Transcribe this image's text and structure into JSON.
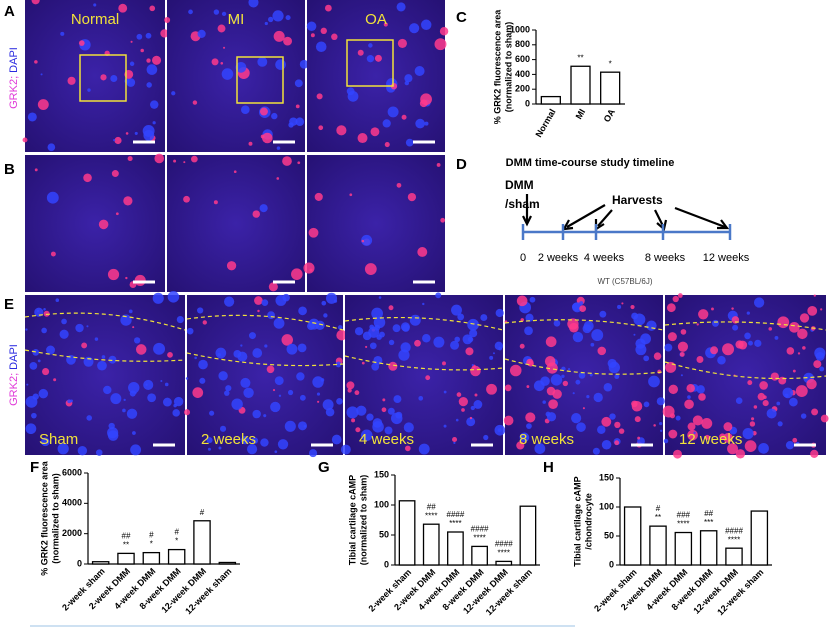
{
  "figure": {
    "panel_letters": [
      "A",
      "B",
      "C",
      "D",
      "E",
      "F",
      "G",
      "H"
    ],
    "stain_label": {
      "grk2": "GRK2;",
      "dapi": "DAPI"
    },
    "panel_A_labels": [
      "Normal",
      "MI",
      "OA"
    ],
    "panel_E_labels": [
      "Sham",
      "2 weeks",
      "4 weeks",
      "8 weeks",
      "12 weeks"
    ],
    "timeline": {
      "title": "DMM time-course study timeline",
      "start": [
        "DMM",
        "/sham"
      ],
      "harvests": "Harvests",
      "points": [
        "0",
        "2 weeks",
        "4 weeks",
        "8 weeks",
        "12 weeks"
      ],
      "strain": "WT (C57BL/6J)"
    }
  },
  "chart_data": [
    {
      "type": "bar",
      "ylabel": [
        "% GRK2 fluorescence area",
        "(normalized to sham)"
      ],
      "categories": [
        "Normal",
        "MI",
        "OA"
      ],
      "values": [
        100,
        510,
        430
      ],
      "annotations": [
        [],
        [
          "**"
        ],
        [
          "*"
        ]
      ],
      "color": "#ffffff",
      "ylim": [
        0,
        1000
      ],
      "yticks": [
        0,
        200,
        400,
        600,
        800,
        1000
      ]
    },
    {
      "type": "bar",
      "ylabel": [
        "% GRK2 fluorescence area",
        "(normalized to sham)"
      ],
      "categories": [
        "2-week sham",
        "2-week DMM",
        "4-week DMM",
        "8-week DMM",
        "12-week DMM",
        "12-week sham"
      ],
      "values": [
        150,
        700,
        750,
        950,
        2850,
        100
      ],
      "annotations": [
        [],
        [
          "##",
          "**"
        ],
        [
          "#",
          "*"
        ],
        [
          "#",
          "*"
        ],
        [
          "#"
        ],
        []
      ],
      "color": "#ffffff",
      "ylim": [
        0,
        6000
      ],
      "yticks": [
        0,
        2000,
        4000,
        6000
      ]
    },
    {
      "type": "bar",
      "ylabel": [
        "Tibial cartilage cAMP",
        "(normalized to sham)"
      ],
      "categories": [
        "2-week sham",
        "2-week DMM",
        "4-week DMM",
        "8-week DMM",
        "12-week DMM",
        "12-week sham"
      ],
      "values": [
        107,
        68,
        55,
        31,
        6,
        98
      ],
      "annotations": [
        [],
        [
          "##",
          "****"
        ],
        [
          "####",
          "****"
        ],
        [
          "####",
          "****"
        ],
        [
          "####",
          "****"
        ],
        []
      ],
      "color": "#ffffff",
      "ylim": [
        0,
        150
      ],
      "yticks": [
        0,
        50,
        100,
        150
      ]
    },
    {
      "type": "bar",
      "ylabel": [
        "Tibial cartilage cAMP",
        "/chondrocyte"
      ],
      "categories": [
        "2-week sham",
        "2-week DMM",
        "4-week DMM",
        "8-week DMM",
        "12-week DMM",
        "12-week sham"
      ],
      "values": [
        100,
        67,
        56,
        59,
        29,
        93
      ],
      "annotations": [
        [],
        [
          "#",
          "**"
        ],
        [
          "###",
          "****"
        ],
        [
          "##",
          "***"
        ],
        [
          "####",
          "****"
        ],
        []
      ],
      "color": "#ffffff",
      "ylim": [
        0,
        150
      ],
      "yticks": [
        0,
        50,
        100,
        150
      ]
    }
  ]
}
